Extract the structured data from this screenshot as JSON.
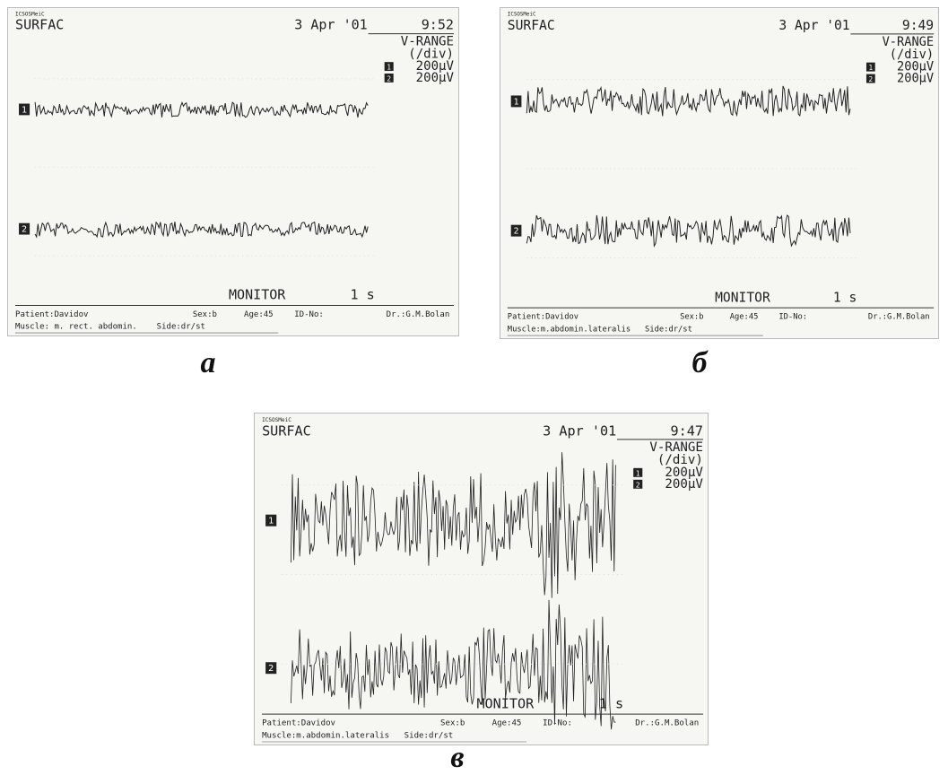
{
  "panels": [
    {
      "brand": "ICSOSMeiC",
      "device": "SURFAC",
      "date": "3 Apr '01",
      "time": "9:52",
      "range_title": "V-RANGE",
      "range_unit": "(/div)",
      "channels": [
        {
          "id": "1",
          "range": "200µV"
        },
        {
          "id": "2",
          "range": "200µV"
        }
      ],
      "mode": "MONITOR",
      "timebase": "1 s",
      "patient": "Patient:Davidov",
      "sex": "Sex:b",
      "age": "Age:45",
      "id_no": "ID-No:",
      "doctor": "Dr.:G.M.Bolan",
      "muscle": "Muscle: m. rect. abdomin.",
      "side": "Side:dr/st",
      "caption": "а"
    },
    {
      "brand": "ICSOSMeiC",
      "device": "SURFAC",
      "date": "3 Apr '01",
      "time": "9:49",
      "range_title": "V-RANGE",
      "range_unit": "(/div)",
      "channels": [
        {
          "id": "1",
          "range": "200µV"
        },
        {
          "id": "2",
          "range": "200µV"
        }
      ],
      "mode": "MONITOR",
      "timebase": "1 s",
      "patient": "Patient:Davidov",
      "sex": "Sex:b",
      "age": "Age:45",
      "id_no": "ID-No:",
      "doctor": "Dr.:G.M.Bolan",
      "muscle": "Muscle:m.abdomin.lateralis",
      "side": "Side:dr/st",
      "caption": "б"
    },
    {
      "brand": "ICSOSMeiC",
      "device": "SURFAC",
      "date": "3 Apr '01",
      "time": "9:47",
      "range_title": "V-RANGE",
      "range_unit": "(/div)",
      "channels": [
        {
          "id": "1",
          "range": "200µV"
        },
        {
          "id": "2",
          "range": "200µV"
        }
      ],
      "mode": "MONITOR",
      "timebase": "1 s",
      "patient": "Patient:Davidov",
      "sex": "Sex:b",
      "age": "Age:45",
      "id_no": "ID-No:",
      "doctor": "Dr.:G.M.Bolan",
      "muscle": "Muscle:m.abdomin.lateralis",
      "side": "Side:dr/st",
      "caption": "в"
    }
  ]
}
